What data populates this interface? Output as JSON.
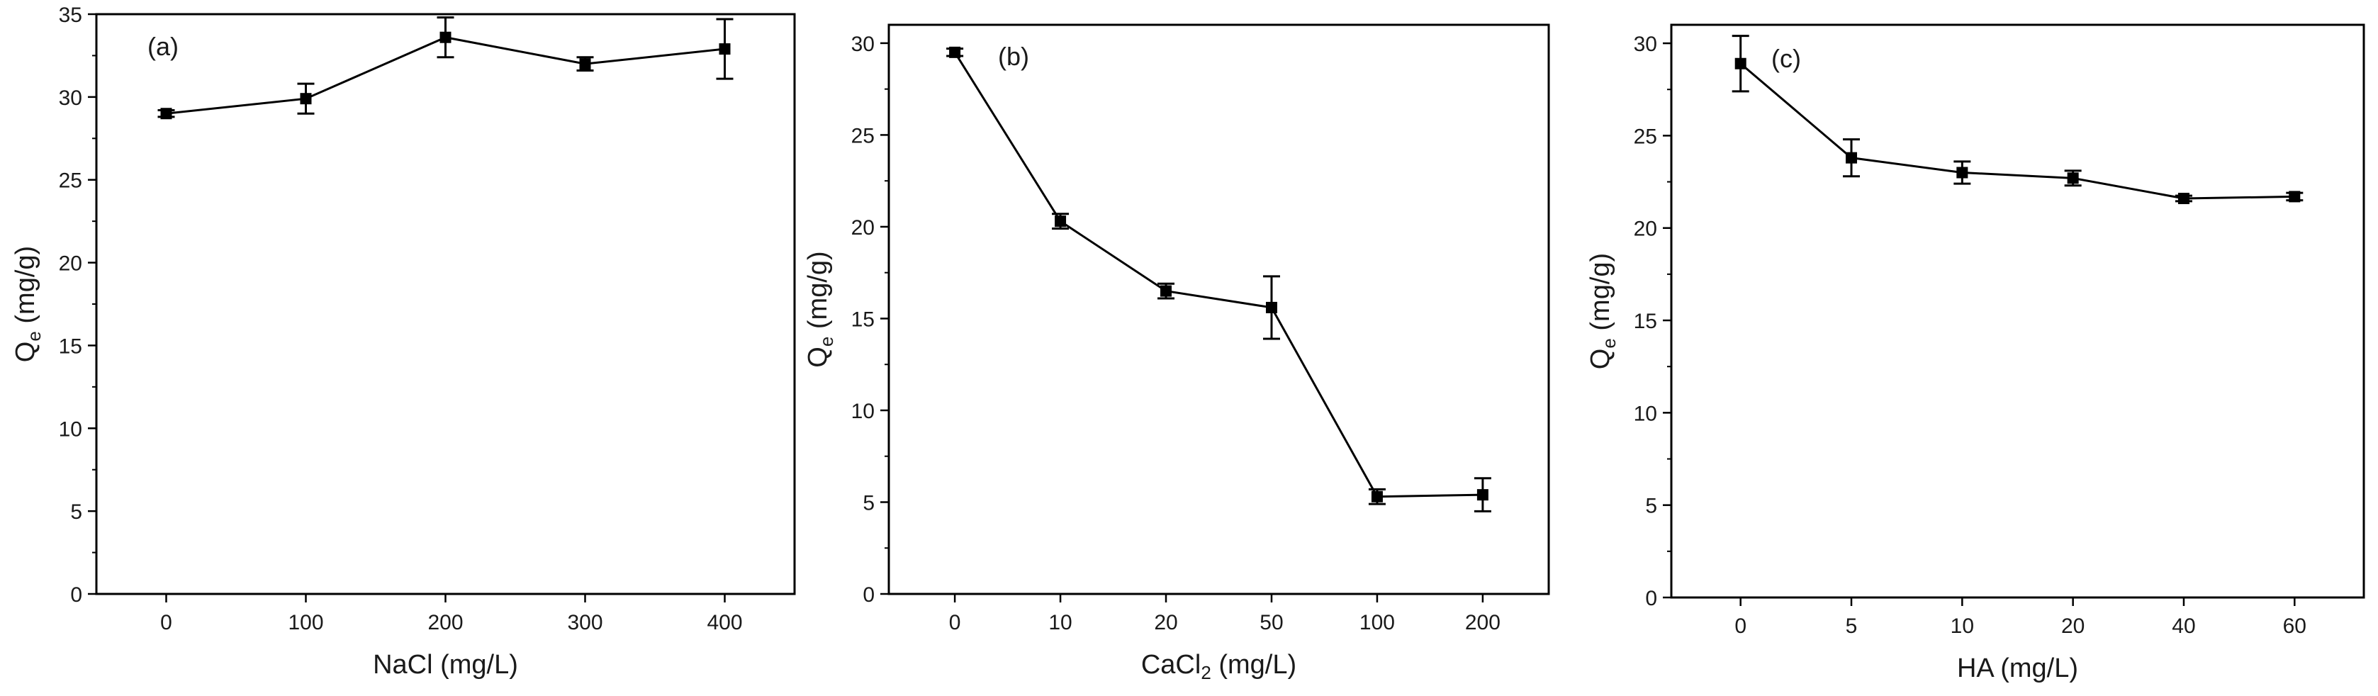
{
  "chart_data": [
    {
      "type": "line",
      "panel_label": "(a)",
      "categories": [
        "0",
        "100",
        "200",
        "300",
        "400"
      ],
      "series": [
        {
          "name": "Qe",
          "values": [
            29.0,
            29.9,
            33.6,
            32.0,
            32.9
          ],
          "errors": [
            0.2,
            0.9,
            1.2,
            0.4,
            1.8
          ]
        }
      ],
      "xlabel": "NaCl (mg/L)",
      "ylabel": {
        "main": "Q",
        "sub": "e",
        "rest": " (mg/g)"
      },
      "ylim": [
        0,
        35
      ],
      "yticks": [
        "0",
        "5",
        "10",
        "15",
        "20",
        "25",
        "30",
        "35"
      ],
      "grid": false
    },
    {
      "type": "line",
      "panel_label": "(b)",
      "categories": [
        "0",
        "10",
        "20",
        "50",
        "100",
        "200"
      ],
      "series": [
        {
          "name": "Qe",
          "values": [
            29.5,
            20.3,
            16.5,
            15.6,
            5.3,
            5.4
          ],
          "errors": [
            0.2,
            0.4,
            0.4,
            1.7,
            0.4,
            0.9
          ]
        }
      ],
      "xlabel": {
        "main": "CaCl",
        "sub": "2",
        "rest": " (mg/L)"
      },
      "ylabel": {
        "main": "Q",
        "sub": "e",
        "rest": " (mg/g)"
      },
      "ylim": [
        0,
        31
      ],
      "yticks": [
        "0",
        "5",
        "10",
        "15",
        "20",
        "25",
        "30"
      ],
      "grid": false
    },
    {
      "type": "line",
      "panel_label": "(c)",
      "categories": [
        "0",
        "5",
        "10",
        "20",
        "40",
        "60"
      ],
      "series": [
        {
          "name": "Qe",
          "values": [
            28.9,
            23.8,
            23.0,
            22.7,
            21.6,
            21.7
          ],
          "errors": [
            1.5,
            1.0,
            0.6,
            0.4,
            0.15,
            0.2
          ]
        }
      ],
      "xlabel": "HA (mg/L)",
      "ylabel": {
        "main": "Q",
        "sub": "e",
        "rest": " (mg/g)"
      },
      "ylim": [
        0,
        31
      ],
      "yticks": [
        "0",
        "5",
        "10",
        "15",
        "20",
        "25",
        "30"
      ],
      "grid": false
    }
  ]
}
